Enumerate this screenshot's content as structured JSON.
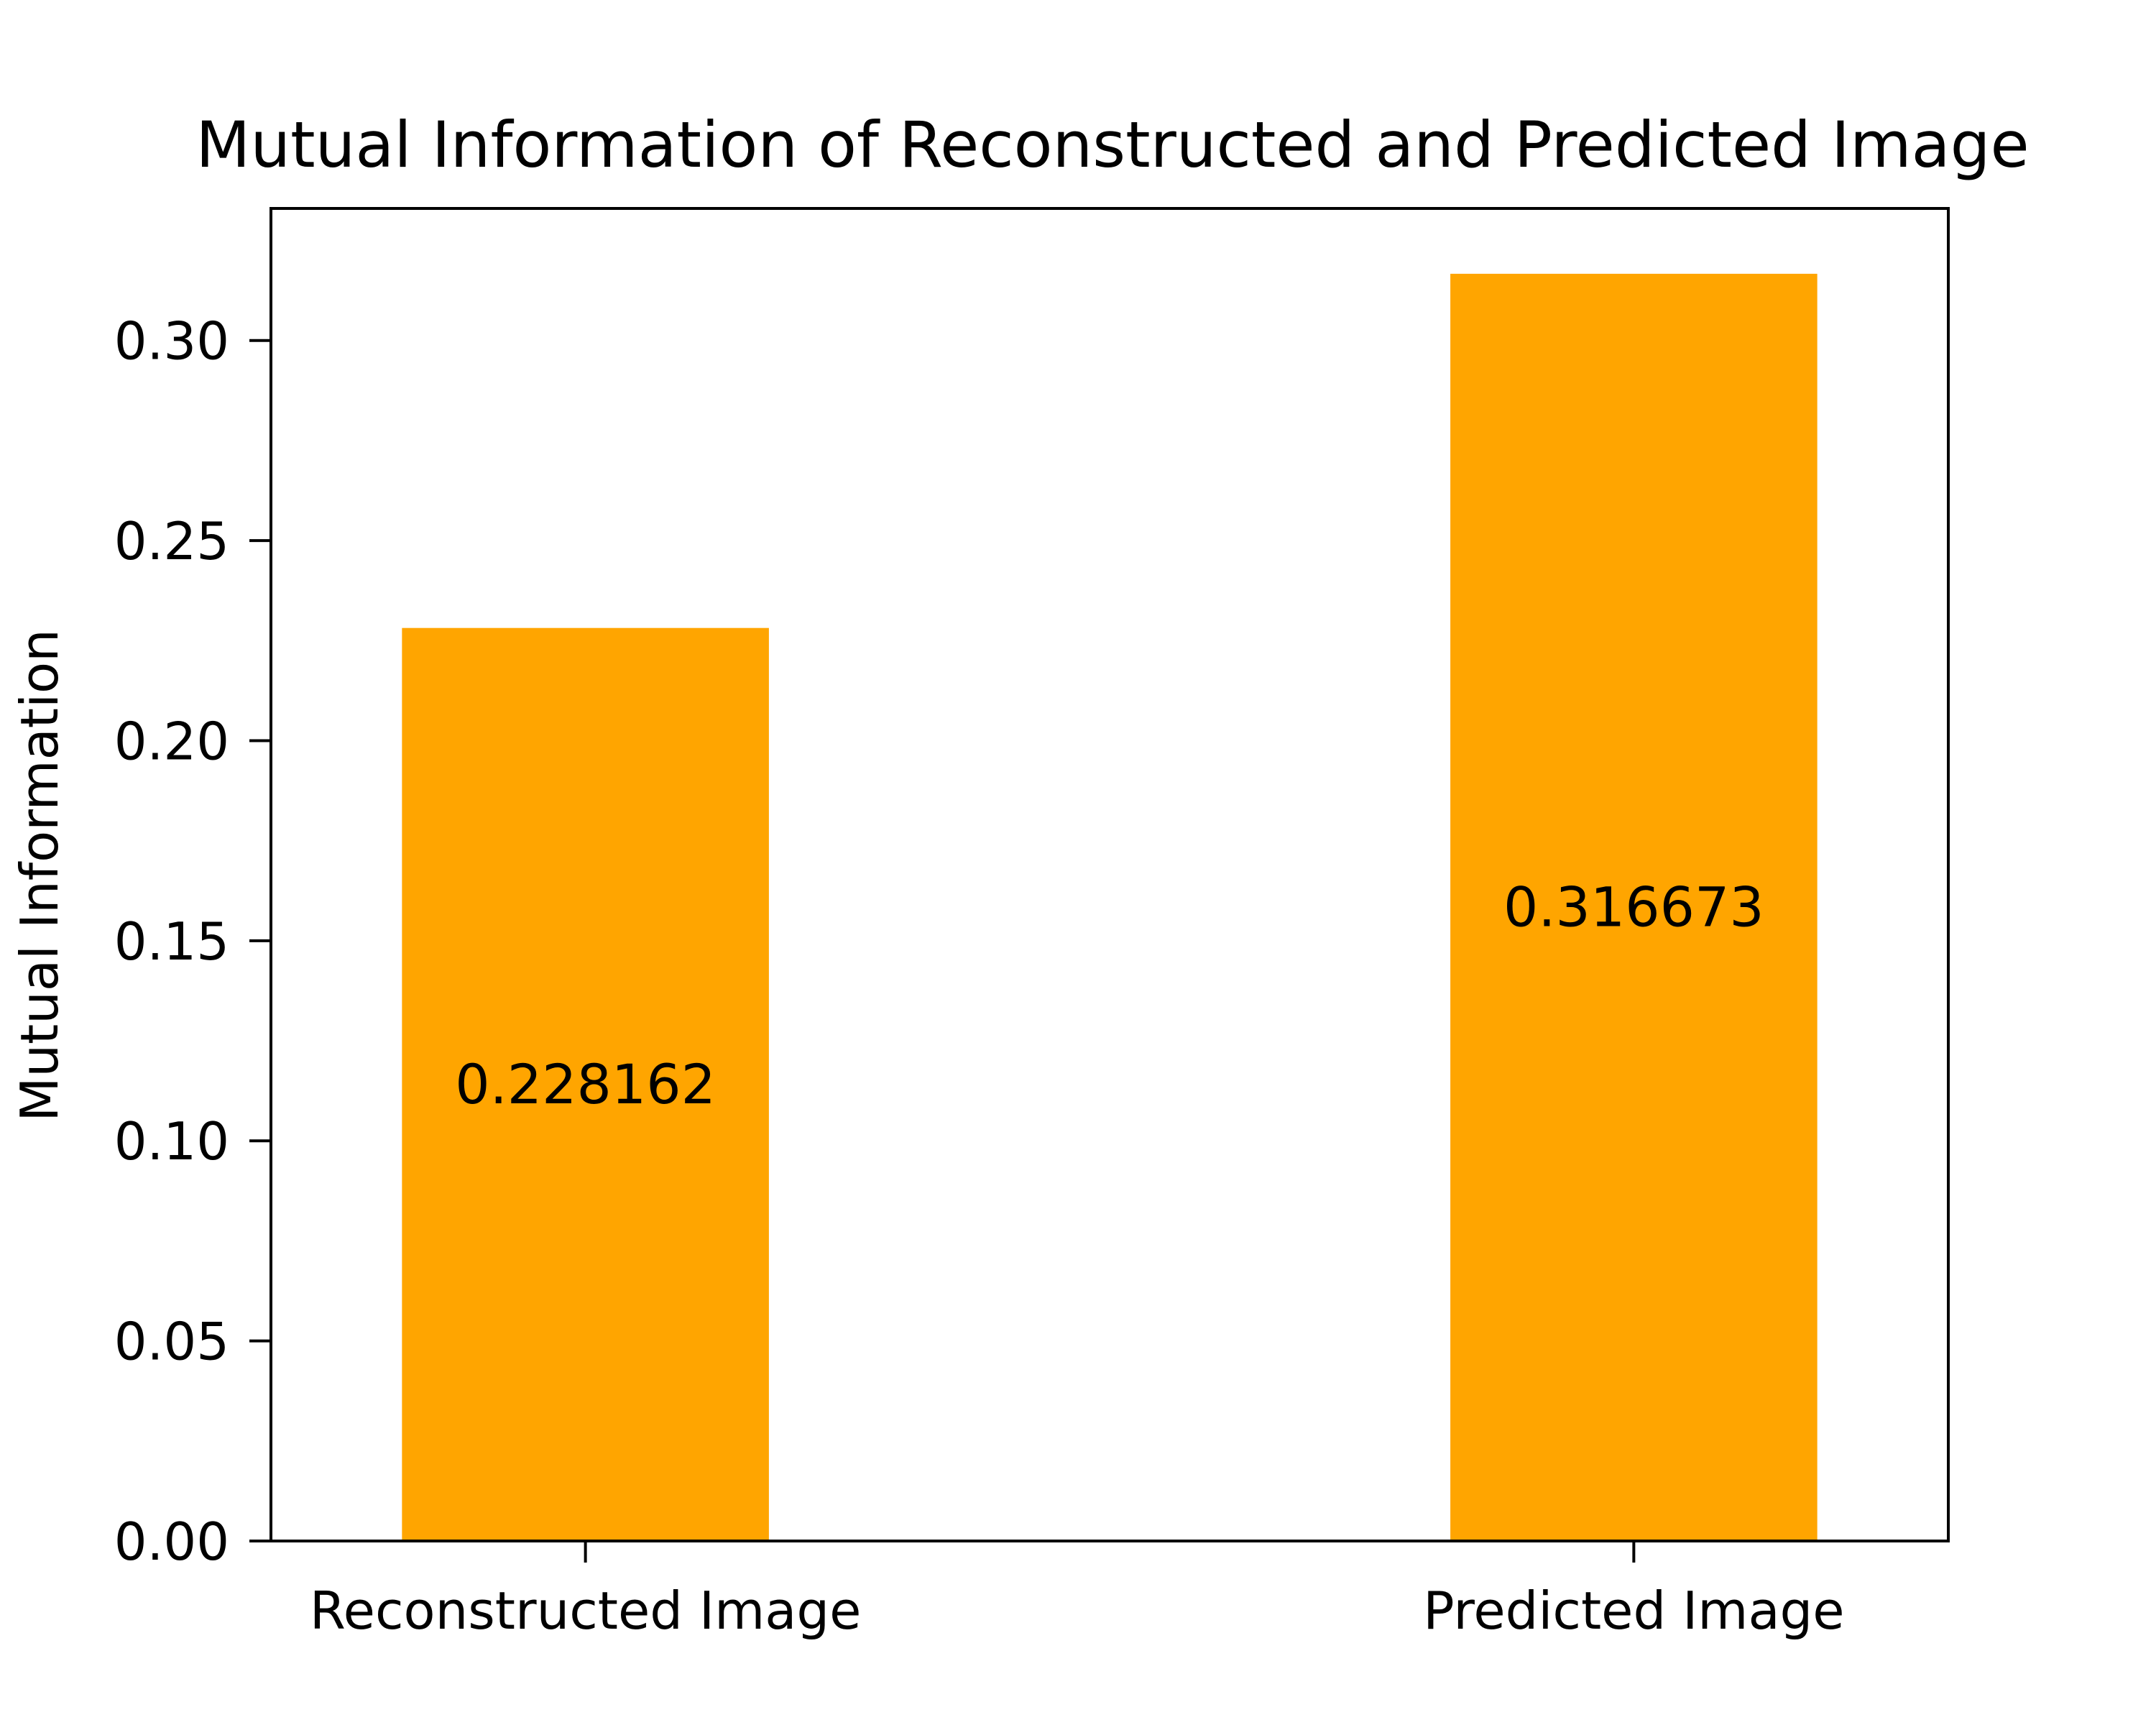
{
  "chart_data": {
    "type": "bar",
    "title": "Mutual Information of Reconstructed and Predicted Image",
    "xlabel": "",
    "ylabel": "Mutual Information",
    "categories": [
      "Reconstructed Image",
      "Predicted Image"
    ],
    "values": [
      0.228162,
      0.316673
    ],
    "data_labels": [
      "0.228162",
      "0.316673"
    ],
    "ylim": [
      0,
      0.333
    ],
    "yticks": [
      0.0,
      0.05,
      0.1,
      0.15,
      0.2,
      0.25,
      0.3
    ],
    "ytick_labels": [
      "0.00",
      "0.05",
      "0.10",
      "0.15",
      "0.20",
      "0.25",
      "0.30"
    ],
    "bar_color": "#ffa500",
    "grid": false,
    "legend": "none"
  }
}
